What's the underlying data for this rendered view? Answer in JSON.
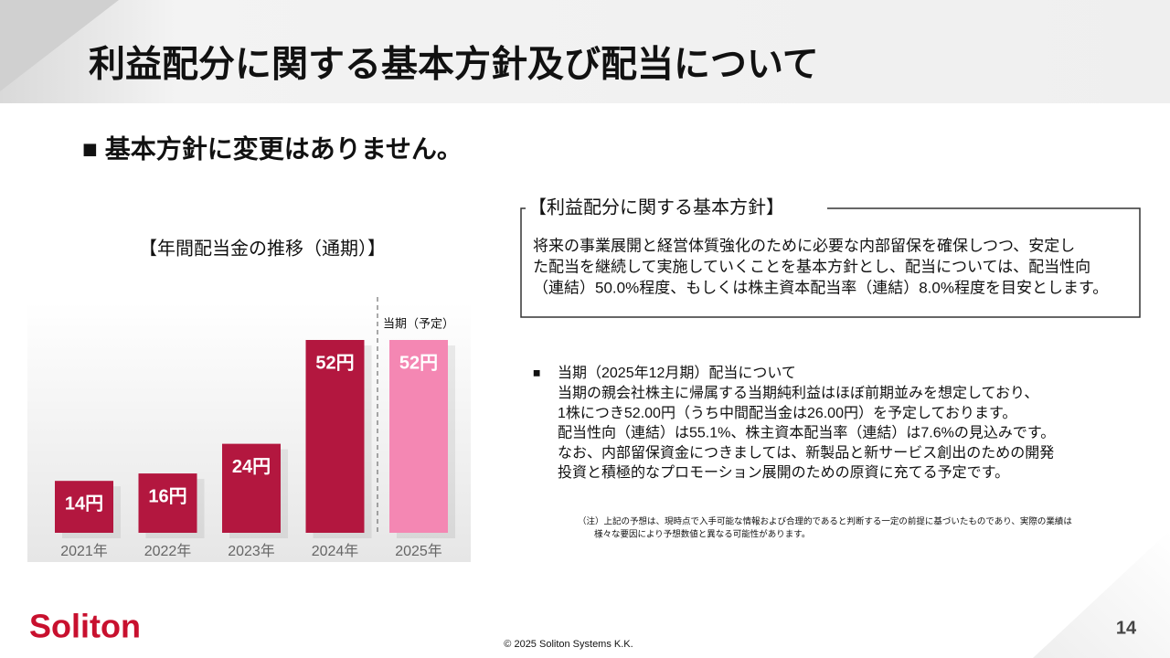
{
  "header": {
    "title": "利益配分に関する基本方針及び配当について"
  },
  "lead": "■ 基本方針に変更はありません。",
  "chart_data": {
    "type": "bar",
    "title": "【年間配当金の推移（通期）】",
    "categories": [
      "2021年",
      "2022年",
      "2023年",
      "2024年",
      "2025年"
    ],
    "values": [
      14,
      16,
      24,
      52,
      52
    ],
    "value_labels": [
      "14円",
      "16円",
      "24円",
      "52円",
      "52円"
    ],
    "colors": [
      "#b3173f",
      "#b3173f",
      "#b3173f",
      "#b3173f",
      "#f487b3"
    ],
    "annotation": "当期（予定）"
  },
  "policy": {
    "heading": "【利益配分に関する基本方針】",
    "lines": [
      "将来の事業展開と経営体質強化のために必要な内部留保を確保しつつ、安定し",
      "た配当を継続して実施していくことを基本方針とし、配当については、配当性向",
      "（連結）50.0%程度、もしくは株主資本配当率（連結）8.0%程度を目安とします。"
    ]
  },
  "current": {
    "bullet": "■",
    "lines": [
      "当期（2025年12月期）配当について",
      "当期の親会社株主に帰属する当期純利益はほぼ前期並みを想定しており、",
      "1株につき52.00円（うち中間配当金は26.00円）を予定しております。",
      "配当性向（連結）は55.1%、株主資本配当率（連結）は7.6%の見込みです。",
      "なお、内部留保資金につきましては、新製品と新サービス創出のための開発",
      "投資と積極的なプロモーション展開のための原資に充てる予定です。"
    ]
  },
  "note": [
    "（注）上記の予想は、現時点で入手可能な情報および合理的であると判断する一定の前提に基づいたものであり、実際の業績は",
    "様々な要因により予想数値と異なる可能性があります。"
  ],
  "footer": {
    "logo": "Soliton",
    "copyright": "© 2025 Soliton Systems K.K.",
    "page": "14"
  }
}
